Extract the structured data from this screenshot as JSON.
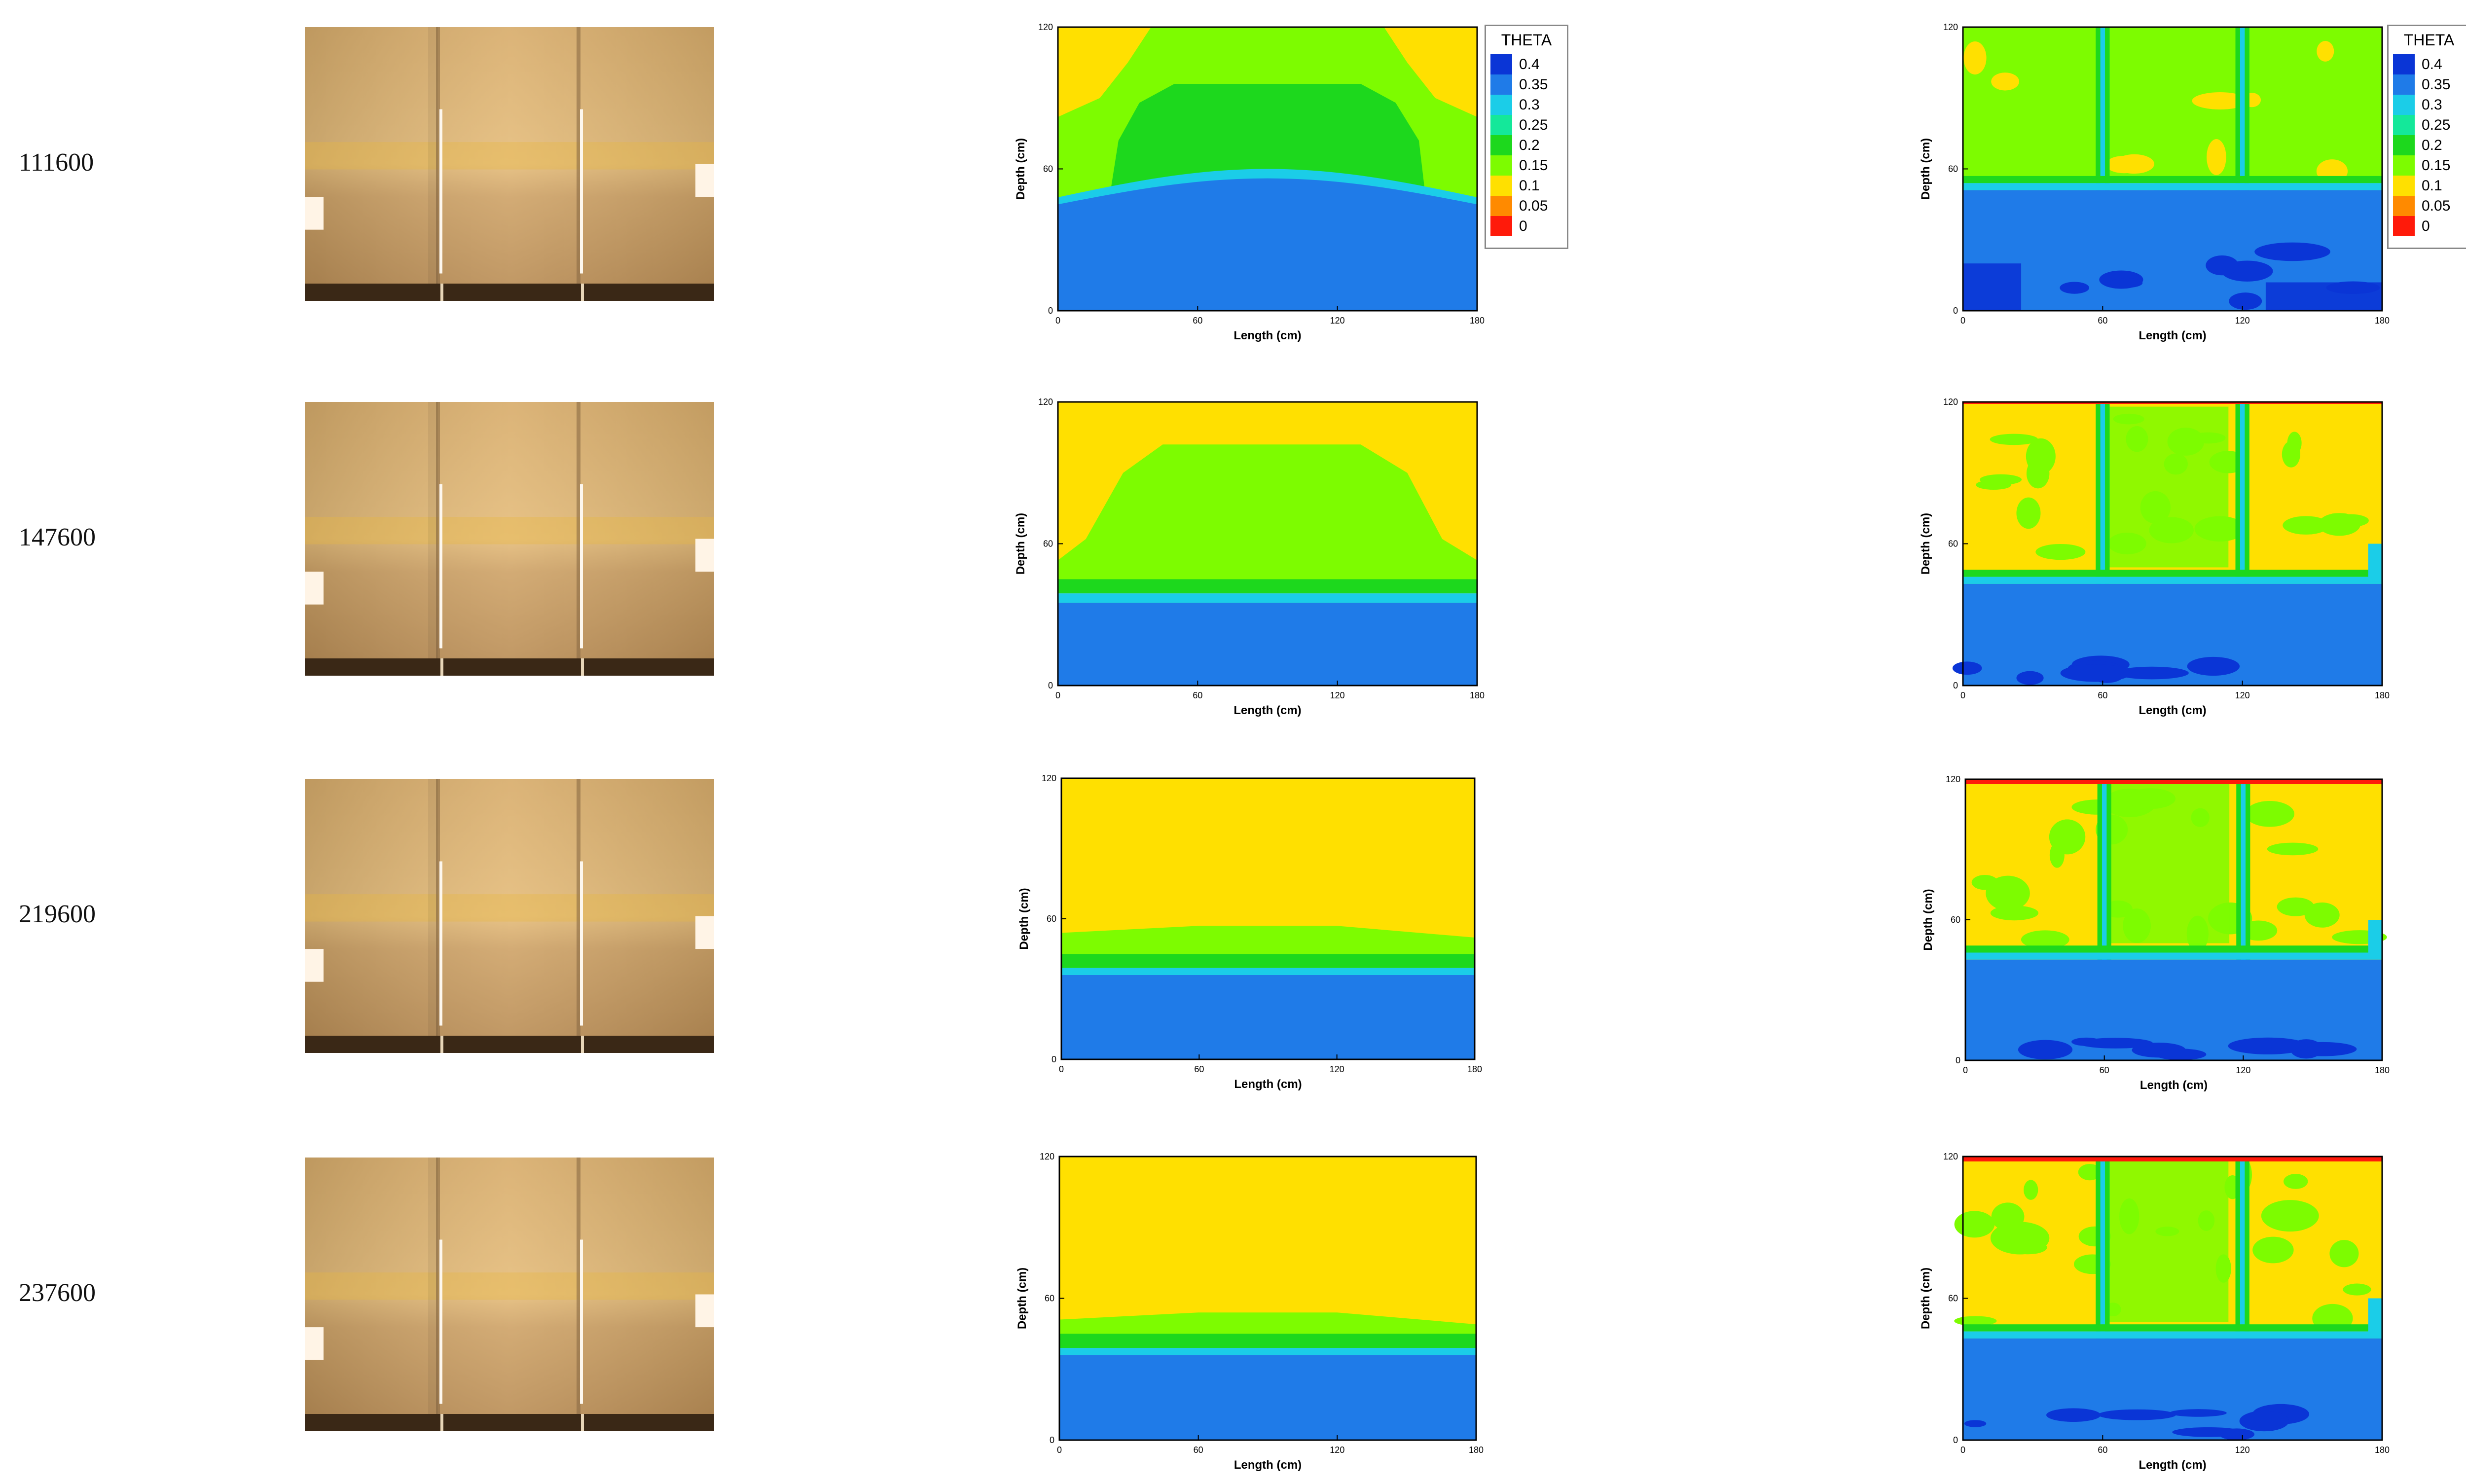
{
  "rows": [
    {
      "label": "111600"
    },
    {
      "label": "147600"
    },
    {
      "label": "219600"
    },
    {
      "label": "237600"
    }
  ],
  "axes": {
    "xlabel": "Length (cm)",
    "ylabel": "Depth (cm)",
    "x_ticks": [
      "0",
      "60",
      "120",
      "180"
    ],
    "y_ticks": [
      "0",
      "60",
      "120"
    ],
    "xlim": [
      0,
      180
    ],
    "ylim": [
      0,
      120
    ]
  },
  "legend": {
    "title": "THETA",
    "levels": [
      {
        "label": "0.4",
        "color": "#0a35d6"
      },
      {
        "label": "0.35",
        "color": "#1f7be8"
      },
      {
        "label": "0.3",
        "color": "#1bcde8"
      },
      {
        "label": "0.25",
        "color": "#14e89a"
      },
      {
        "label": "0.2",
        "color": "#1dd81d"
      },
      {
        "label": "0.15",
        "color": "#7dfc00"
      },
      {
        "label": "0.1",
        "color": "#ffe000"
      },
      {
        "label": "0.05",
        "color": "#ff8a00"
      },
      {
        "label": "0",
        "color": "#ff1a0a"
      }
    ]
  },
  "colors": {
    "photo_sand_light": "#e9c48a",
    "photo_sand_dark": "#c99a5a",
    "photo_frame": "#3a2816",
    "theta_04": "#0a35d6",
    "theta_035": "#1f7be8",
    "theta_03": "#1bcde8",
    "theta_02": "#1dd81d",
    "theta_015": "#7dfc00",
    "theta_01": "#ffe000",
    "theta_0": "#ff1a0a"
  }
}
